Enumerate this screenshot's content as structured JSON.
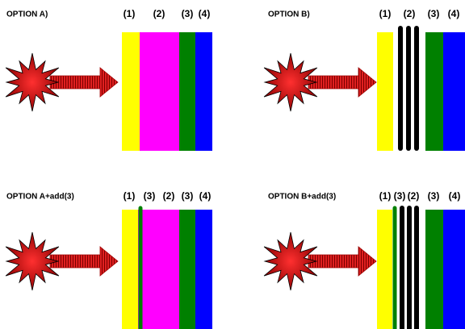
{
  "panels": [
    {
      "title": "OPTION A)",
      "labels": [
        "(1)",
        "(2)",
        "(3)",
        "(4)"
      ]
    },
    {
      "title": "OPTION B)",
      "labels": [
        "(1)",
        "(2)",
        "(3)",
        "(4)"
      ]
    },
    {
      "title": "OPTION A+add(3)",
      "labels": [
        "(1)",
        "(3)",
        "(2)",
        "(3)",
        "(4)"
      ]
    },
    {
      "title": "OPTION B+add(3)",
      "labels": [
        "(1)",
        "(3)",
        "(2)",
        "(3)",
        "(4)"
      ]
    }
  ]
}
